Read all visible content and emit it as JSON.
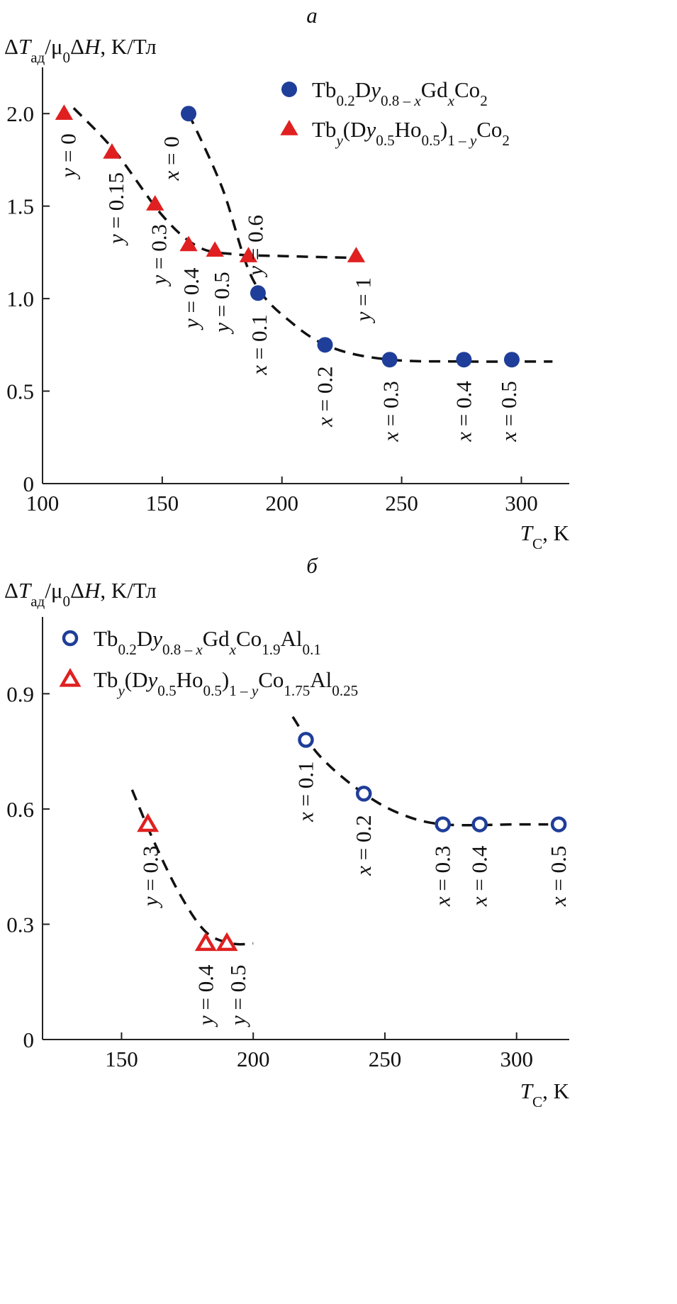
{
  "chart_data": [
    {
      "type": "scatter",
      "panel_label": "а",
      "ylabel": "ΔTад/μ0ΔH, K/Тл",
      "xlabel": "TC, K",
      "xlim": [
        100,
        320
      ],
      "ylim": [
        0,
        2.25
      ],
      "xticks": [
        100,
        150,
        200,
        250,
        300
      ],
      "yticks": [
        0,
        0.5,
        1.0,
        1.5,
        2.0
      ],
      "ytick_labels": [
        "0",
        "0.5",
        "1.0",
        "1.5",
        "2.0"
      ],
      "grid": false,
      "legend_position": "top-right",
      "series": [
        {
          "name": "Tb0.2Dy0.8 – xGdxCo2",
          "marker": "filled-circle",
          "color": "#1f3e99",
          "points": [
            {
              "x": 161,
              "y": 2.0,
              "label": "x = 0"
            },
            {
              "x": 190,
              "y": 1.03,
              "label": "x = 0.1"
            },
            {
              "x": 218,
              "y": 0.75,
              "label": "x = 0.2"
            },
            {
              "x": 245,
              "y": 0.67,
              "label": "x = 0.3"
            },
            {
              "x": 276,
              "y": 0.67,
              "label": "x = 0.4"
            },
            {
              "x": 296,
              "y": 0.67,
              "label": "x = 0.5"
            }
          ]
        },
        {
          "name": "Tby(Dy0.5Ho0.5)1 – yCo2",
          "marker": "filled-triangle",
          "color": "#e02020",
          "points": [
            {
              "x": 109,
              "y": 2.0,
              "label": "y = 0"
            },
            {
              "x": 129,
              "y": 1.79,
              "label": "y = 0.15"
            },
            {
              "x": 147,
              "y": 1.51,
              "label": "y = 0.3"
            },
            {
              "x": 161,
              "y": 1.29,
              "label": "y = 0.4"
            },
            {
              "x": 172,
              "y": 1.26,
              "label": "y = 0.5"
            },
            {
              "x": 186,
              "y": 1.23,
              "label": "y = 0.6"
            },
            {
              "x": 231,
              "y": 1.23,
              "label": "y = 1"
            }
          ]
        }
      ],
      "dashed_fits": [
        [
          [
            113,
            2.03
          ],
          [
            130,
            1.8
          ],
          [
            150,
            1.45
          ],
          [
            165,
            1.28
          ],
          [
            180,
            1.24
          ],
          [
            200,
            1.23
          ],
          [
            231,
            1.22
          ]
        ],
        [
          [
            161,
            2.0
          ],
          [
            175,
            1.6
          ],
          [
            188,
            1.1
          ],
          [
            205,
            0.86
          ],
          [
            222,
            0.73
          ],
          [
            245,
            0.67
          ],
          [
            275,
            0.66
          ],
          [
            313,
            0.66
          ]
        ]
      ]
    },
    {
      "type": "scatter",
      "panel_label": "б",
      "ylabel": "ΔTад/μ0ΔH, K/Тл",
      "xlabel": "TC, K",
      "xlim": [
        120,
        320
      ],
      "ylim": [
        0,
        1.1
      ],
      "xticks": [
        150,
        200,
        250,
        300
      ],
      "yticks": [
        0,
        0.3,
        0.6,
        0.9
      ],
      "ytick_labels": [
        "0",
        "0.3",
        "0.6",
        "0.9"
      ],
      "grid": false,
      "legend_position": "top-left",
      "series": [
        {
          "name": "Tb0.2Dy0.8 – xGdxCo1.9Al0.1",
          "marker": "open-circle",
          "color": "#1f3e99",
          "points": [
            {
              "x": 220,
              "y": 0.78,
              "label": "x = 0.1"
            },
            {
              "x": 242,
              "y": 0.64,
              "label": "x = 0.2"
            },
            {
              "x": 272,
              "y": 0.56,
              "label": "x = 0.3"
            },
            {
              "x": 286,
              "y": 0.56,
              "label": "x = 0.4"
            },
            {
              "x": 316,
              "y": 0.56,
              "label": "x = 0.5"
            }
          ]
        },
        {
          "name": "Tby(Dy0.5Ho0.5)1 – yCo1.75Al0.25",
          "marker": "open-triangle",
          "color": "#e02020",
          "points": [
            {
              "x": 160,
              "y": 0.56,
              "label": "y = 0.3"
            },
            {
              "x": 182,
              "y": 0.25,
              "label": "y = 0.4"
            },
            {
              "x": 190,
              "y": 0.25,
              "label": "y = 0.5"
            }
          ]
        }
      ],
      "dashed_fits": [
        [
          [
            154,
            0.65
          ],
          [
            162,
            0.52
          ],
          [
            172,
            0.38
          ],
          [
            182,
            0.28
          ],
          [
            192,
            0.25
          ],
          [
            200,
            0.25
          ]
        ],
        [
          [
            215,
            0.84
          ],
          [
            225,
            0.74
          ],
          [
            240,
            0.65
          ],
          [
            255,
            0.59
          ],
          [
            272,
            0.56
          ],
          [
            300,
            0.56
          ],
          [
            312,
            0.56
          ]
        ]
      ]
    }
  ]
}
